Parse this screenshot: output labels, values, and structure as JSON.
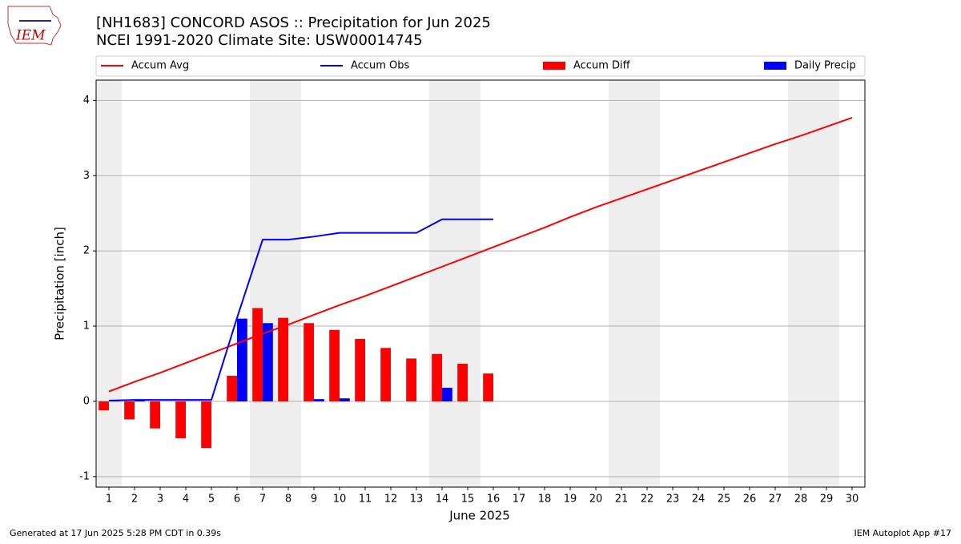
{
  "logo_text": "IEM",
  "chart_data": {
    "type": "bar-line",
    "title": "[NH1683] CONCORD ASOS :: Precipitation for Jun 2025",
    "subtitle": "NCEI 1991-2020 Climate Site: USW00014745",
    "x_label": "June 2025",
    "y_label": "Precipitation [inch]",
    "x": [
      1,
      2,
      3,
      4,
      5,
      6,
      7,
      8,
      9,
      10,
      11,
      12,
      13,
      14,
      15,
      16,
      17,
      18,
      19,
      20,
      21,
      22,
      23,
      24,
      25,
      26,
      27,
      28,
      29,
      30
    ],
    "xlim": [
      0.5,
      30.5
    ],
    "xticks": [
      1,
      2,
      3,
      4,
      5,
      6,
      7,
      8,
      9,
      10,
      11,
      12,
      13,
      14,
      15,
      16,
      17,
      18,
      19,
      20,
      21,
      22,
      23,
      24,
      25,
      26,
      27,
      28,
      29,
      30
    ],
    "ylim": [
      -1.14,
      4.27
    ],
    "yticks": [
      -1,
      0,
      1,
      2,
      3,
      4
    ],
    "grid": true,
    "shaded_spans": [
      [
        0.5,
        1.5
      ],
      [
        6.5,
        8.5
      ],
      [
        13.5,
        15.5
      ],
      [
        20.5,
        22.5
      ],
      [
        27.5,
        29.5
      ]
    ],
    "shade_color": "#eeeeee",
    "series": [
      {
        "name": "Accum Avg",
        "kind": "line",
        "color": "#ff0000",
        "values": [
          0.13,
          0.26,
          0.38,
          0.51,
          0.64,
          0.77,
          0.9,
          1.02,
          1.15,
          1.28,
          1.4,
          1.53,
          1.66,
          1.79,
          1.92,
          2.05,
          2.18,
          2.31,
          2.45,
          2.58,
          2.7,
          2.82,
          2.94,
          3.06,
          3.18,
          3.3,
          3.42,
          3.53,
          3.65,
          3.77
        ]
      },
      {
        "name": "Accum Obs",
        "kind": "line",
        "color": "#0000ff",
        "values": [
          0.01,
          0.02,
          0.02,
          0.02,
          0.02,
          1.11,
          2.15,
          2.15,
          2.19,
          2.24,
          2.24,
          2.24,
          2.24,
          2.42,
          2.42,
          2.42,
          null,
          null,
          null,
          null,
          null,
          null,
          null,
          null,
          null,
          null,
          null,
          null,
          null,
          null
        ]
      },
      {
        "name": "Accum Diff",
        "kind": "bar",
        "offset": -0.2,
        "color": "#ff0000",
        "values": [
          -0.12,
          -0.24,
          -0.36,
          -0.49,
          -0.62,
          0.34,
          1.24,
          1.11,
          1.04,
          0.95,
          0.83,
          0.71,
          0.57,
          0.63,
          0.5,
          0.37,
          null,
          null,
          null,
          null,
          null,
          null,
          null,
          null,
          null,
          null,
          null,
          null,
          null,
          null
        ]
      },
      {
        "name": "Daily Precip",
        "kind": "bar",
        "offset": 0.2,
        "color": "#0000ff",
        "values": [
          0.01,
          0.01,
          0,
          0,
          0,
          1.1,
          1.04,
          0,
          0.03,
          0.04,
          0,
          0,
          0,
          0.18,
          0,
          0,
          null,
          null,
          null,
          null,
          null,
          null,
          null,
          null,
          null,
          null,
          null,
          null,
          null,
          null
        ]
      }
    ]
  },
  "footer_left": "Generated at 17 Jun 2025 5:28 PM CDT in 0.39s",
  "footer_right": "IEM Autoplot App #17"
}
